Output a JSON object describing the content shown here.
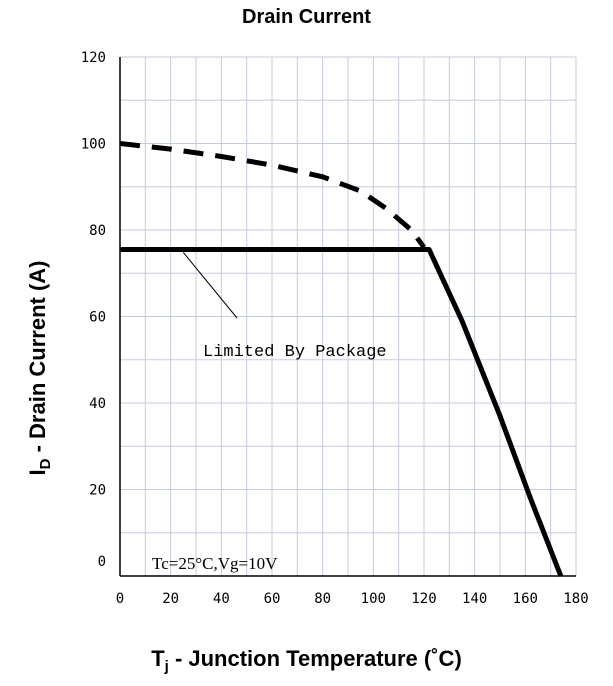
{
  "title": "Drain Current",
  "xlabel": {
    "main": "T",
    "sub": "j",
    "rest": " - Junction Temperature (˚C)"
  },
  "ylabel": {
    "main": "I",
    "sub": "D",
    "rest": " - Drain Current (A)"
  },
  "chart_data": {
    "type": "line",
    "title": "Drain Current",
    "xlim": [
      0,
      180
    ],
    "ylim": [
      0,
      120
    ],
    "xticks": [
      0,
      20,
      40,
      60,
      80,
      100,
      120,
      140,
      160,
      180
    ],
    "yticks": [
      0,
      20,
      40,
      60,
      80,
      100,
      120
    ],
    "grid": true,
    "series": [
      {
        "style": "dashed",
        "x": [
          0,
          20,
          40,
          60,
          80,
          95,
          105,
          115,
          120
        ],
        "y": [
          100,
          98.7,
          97,
          95,
          92.3,
          89,
          85,
          80,
          76
        ]
      },
      {
        "style": "solid",
        "x": [
          0,
          122,
          135,
          150,
          162,
          174
        ],
        "y": [
          75.5,
          75.5,
          59,
          37,
          18,
          0
        ]
      }
    ],
    "annotations": [
      {
        "text": "Limited By Package",
        "points_to": [
          25,
          75.5
        ]
      },
      {
        "text": "Tc=25°C,Vg=10V"
      }
    ]
  }
}
